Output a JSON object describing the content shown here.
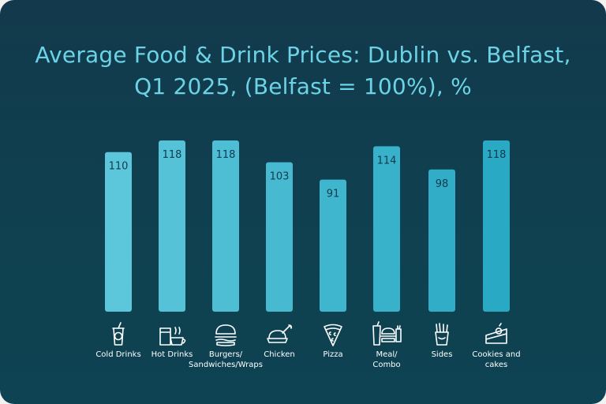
{
  "chart_data": {
    "type": "bar",
    "title_line1": "Average Food & Drink Prices: Dublin vs. Belfast,",
    "title_line2": "Q1 2025, (Belfast = 100%), %",
    "categories": [
      "Cold Drinks",
      "Hot Drinks",
      "Burgers/ Sandwiches/Wraps",
      "Chicken",
      "Pizza",
      "Meal/ Combo",
      "Sides",
      "Cookies and cakes"
    ],
    "category_lines": [
      [
        "Cold Drinks"
      ],
      [
        "Hot Drinks"
      ],
      [
        "Burgers/",
        "Sandwiches/Wraps"
      ],
      [
        "Chicken"
      ],
      [
        "Pizza"
      ],
      [
        "Meal/",
        "Combo"
      ],
      [
        "Sides"
      ],
      [
        "Cookies and",
        "cakes"
      ]
    ],
    "icons": [
      "cold-drink-icon",
      "hot-drink-icon",
      "burger-icon",
      "chicken-icon",
      "pizza-icon",
      "meal-combo-icon",
      "fries-icon",
      "cake-icon"
    ],
    "values": [
      110,
      118,
      118,
      103,
      91,
      114,
      98,
      118
    ],
    "bar_color_start": "#5cc6db",
    "bar_color_end": "#2aa9c4",
    "label_color": "#123a4c",
    "ylim": [
      0,
      120
    ],
    "grid": false
  }
}
